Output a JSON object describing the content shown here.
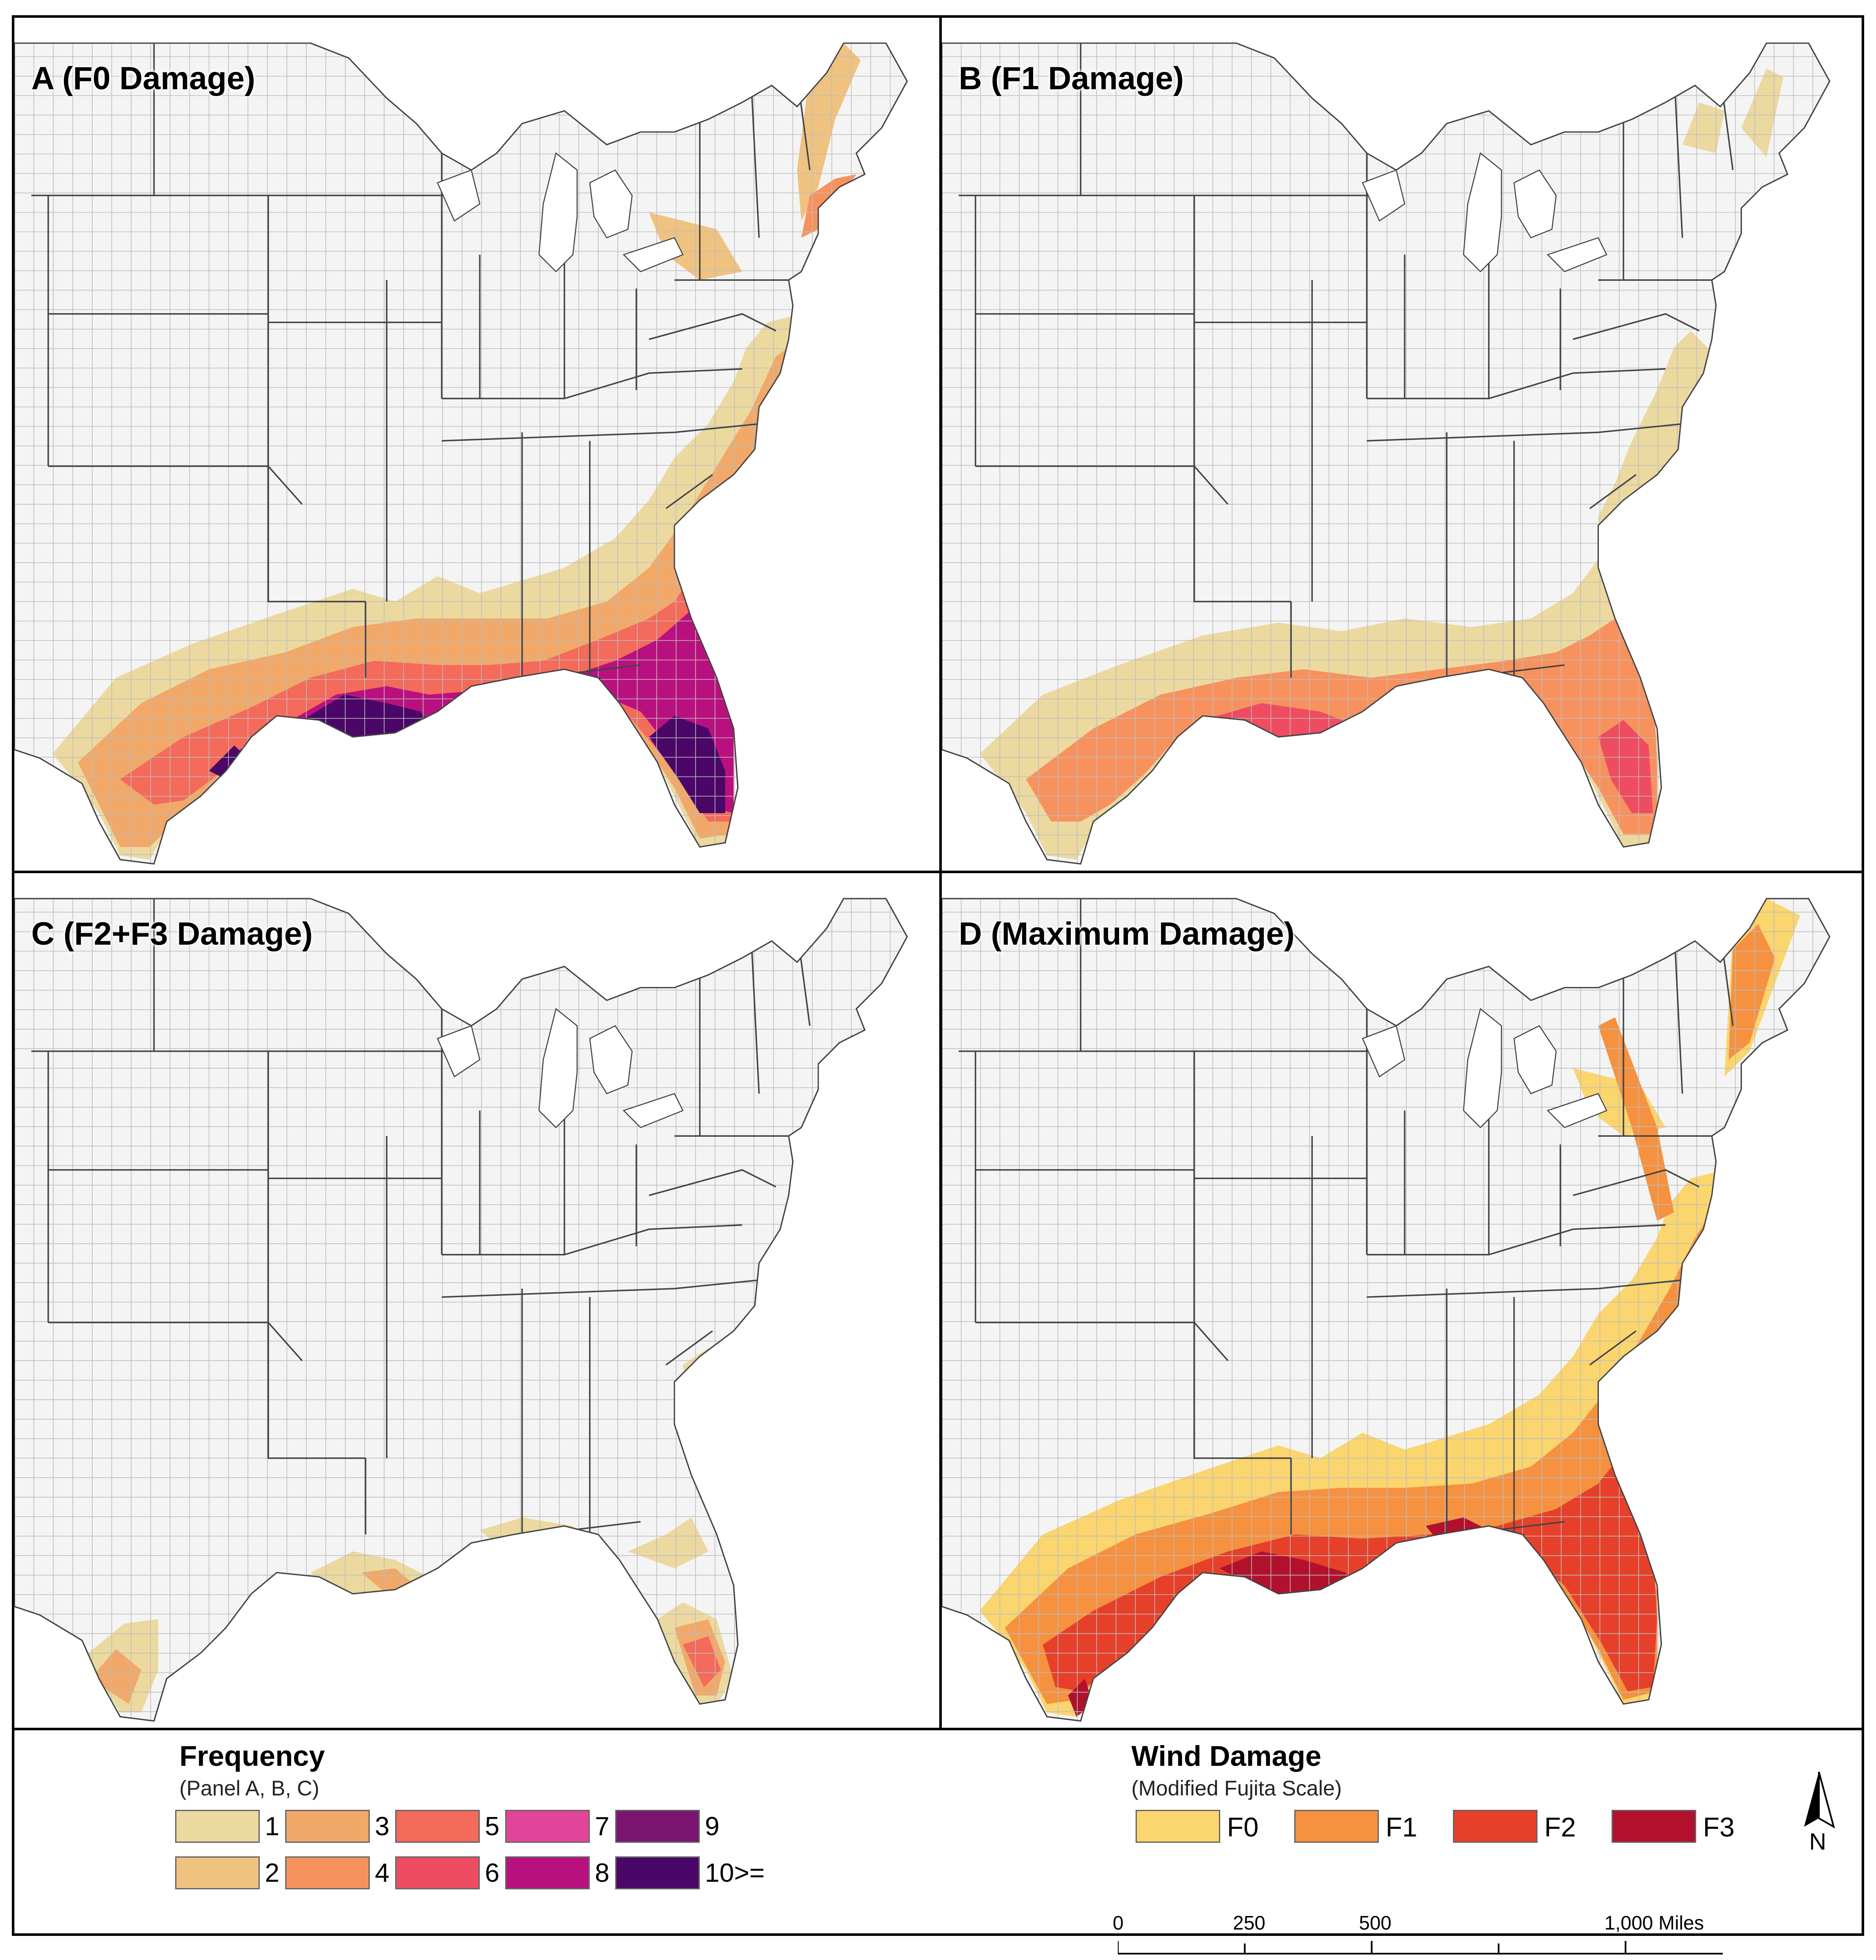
{
  "panels": [
    {
      "id": "A",
      "title": "A (F0 Damage)"
    },
    {
      "id": "B",
      "title": "B (F1 Damage)"
    },
    {
      "id": "C",
      "title": "C (F2+F3 Damage)"
    },
    {
      "id": "D",
      "title": "D (Maximum Damage)"
    }
  ],
  "frequency_legend": {
    "title": "Frequency",
    "subtitle": "(Panel A, B, C)",
    "classes": [
      {
        "label": "1",
        "color": "#ecd9a0"
      },
      {
        "label": "2",
        "color": "#f0c27f"
      },
      {
        "label": "3",
        "color": "#f1a868"
      },
      {
        "label": "4",
        "color": "#f7925e"
      },
      {
        "label": "5",
        "color": "#f46a5b"
      },
      {
        "label": "6",
        "color": "#ee4d61"
      },
      {
        "label": "7",
        "color": "#e2449a"
      },
      {
        "label": "8",
        "color": "#b8117f"
      },
      {
        "label": "9",
        "color": "#7b1470"
      },
      {
        "label": "10>=",
        "color": "#4a0768"
      }
    ]
  },
  "damage_legend": {
    "title": "Wind Damage",
    "subtitle": "(Modified Fujita Scale)",
    "classes": [
      {
        "label": "F0",
        "color": "#fbd56e"
      },
      {
        "label": "F1",
        "color": "#f5913f"
      },
      {
        "label": "F2",
        "color": "#e6402a"
      },
      {
        "label": "F3",
        "color": "#b1112d"
      }
    ]
  },
  "scale_bar": {
    "labels": [
      "0",
      "250",
      "500",
      "1,000 Miles"
    ]
  },
  "north_arrow": {
    "label": "N"
  },
  "colors": {
    "land": "#f4f4f4",
    "water": "#ffffff",
    "county_line": "#bdbdbd",
    "state_line": "#444444"
  }
}
